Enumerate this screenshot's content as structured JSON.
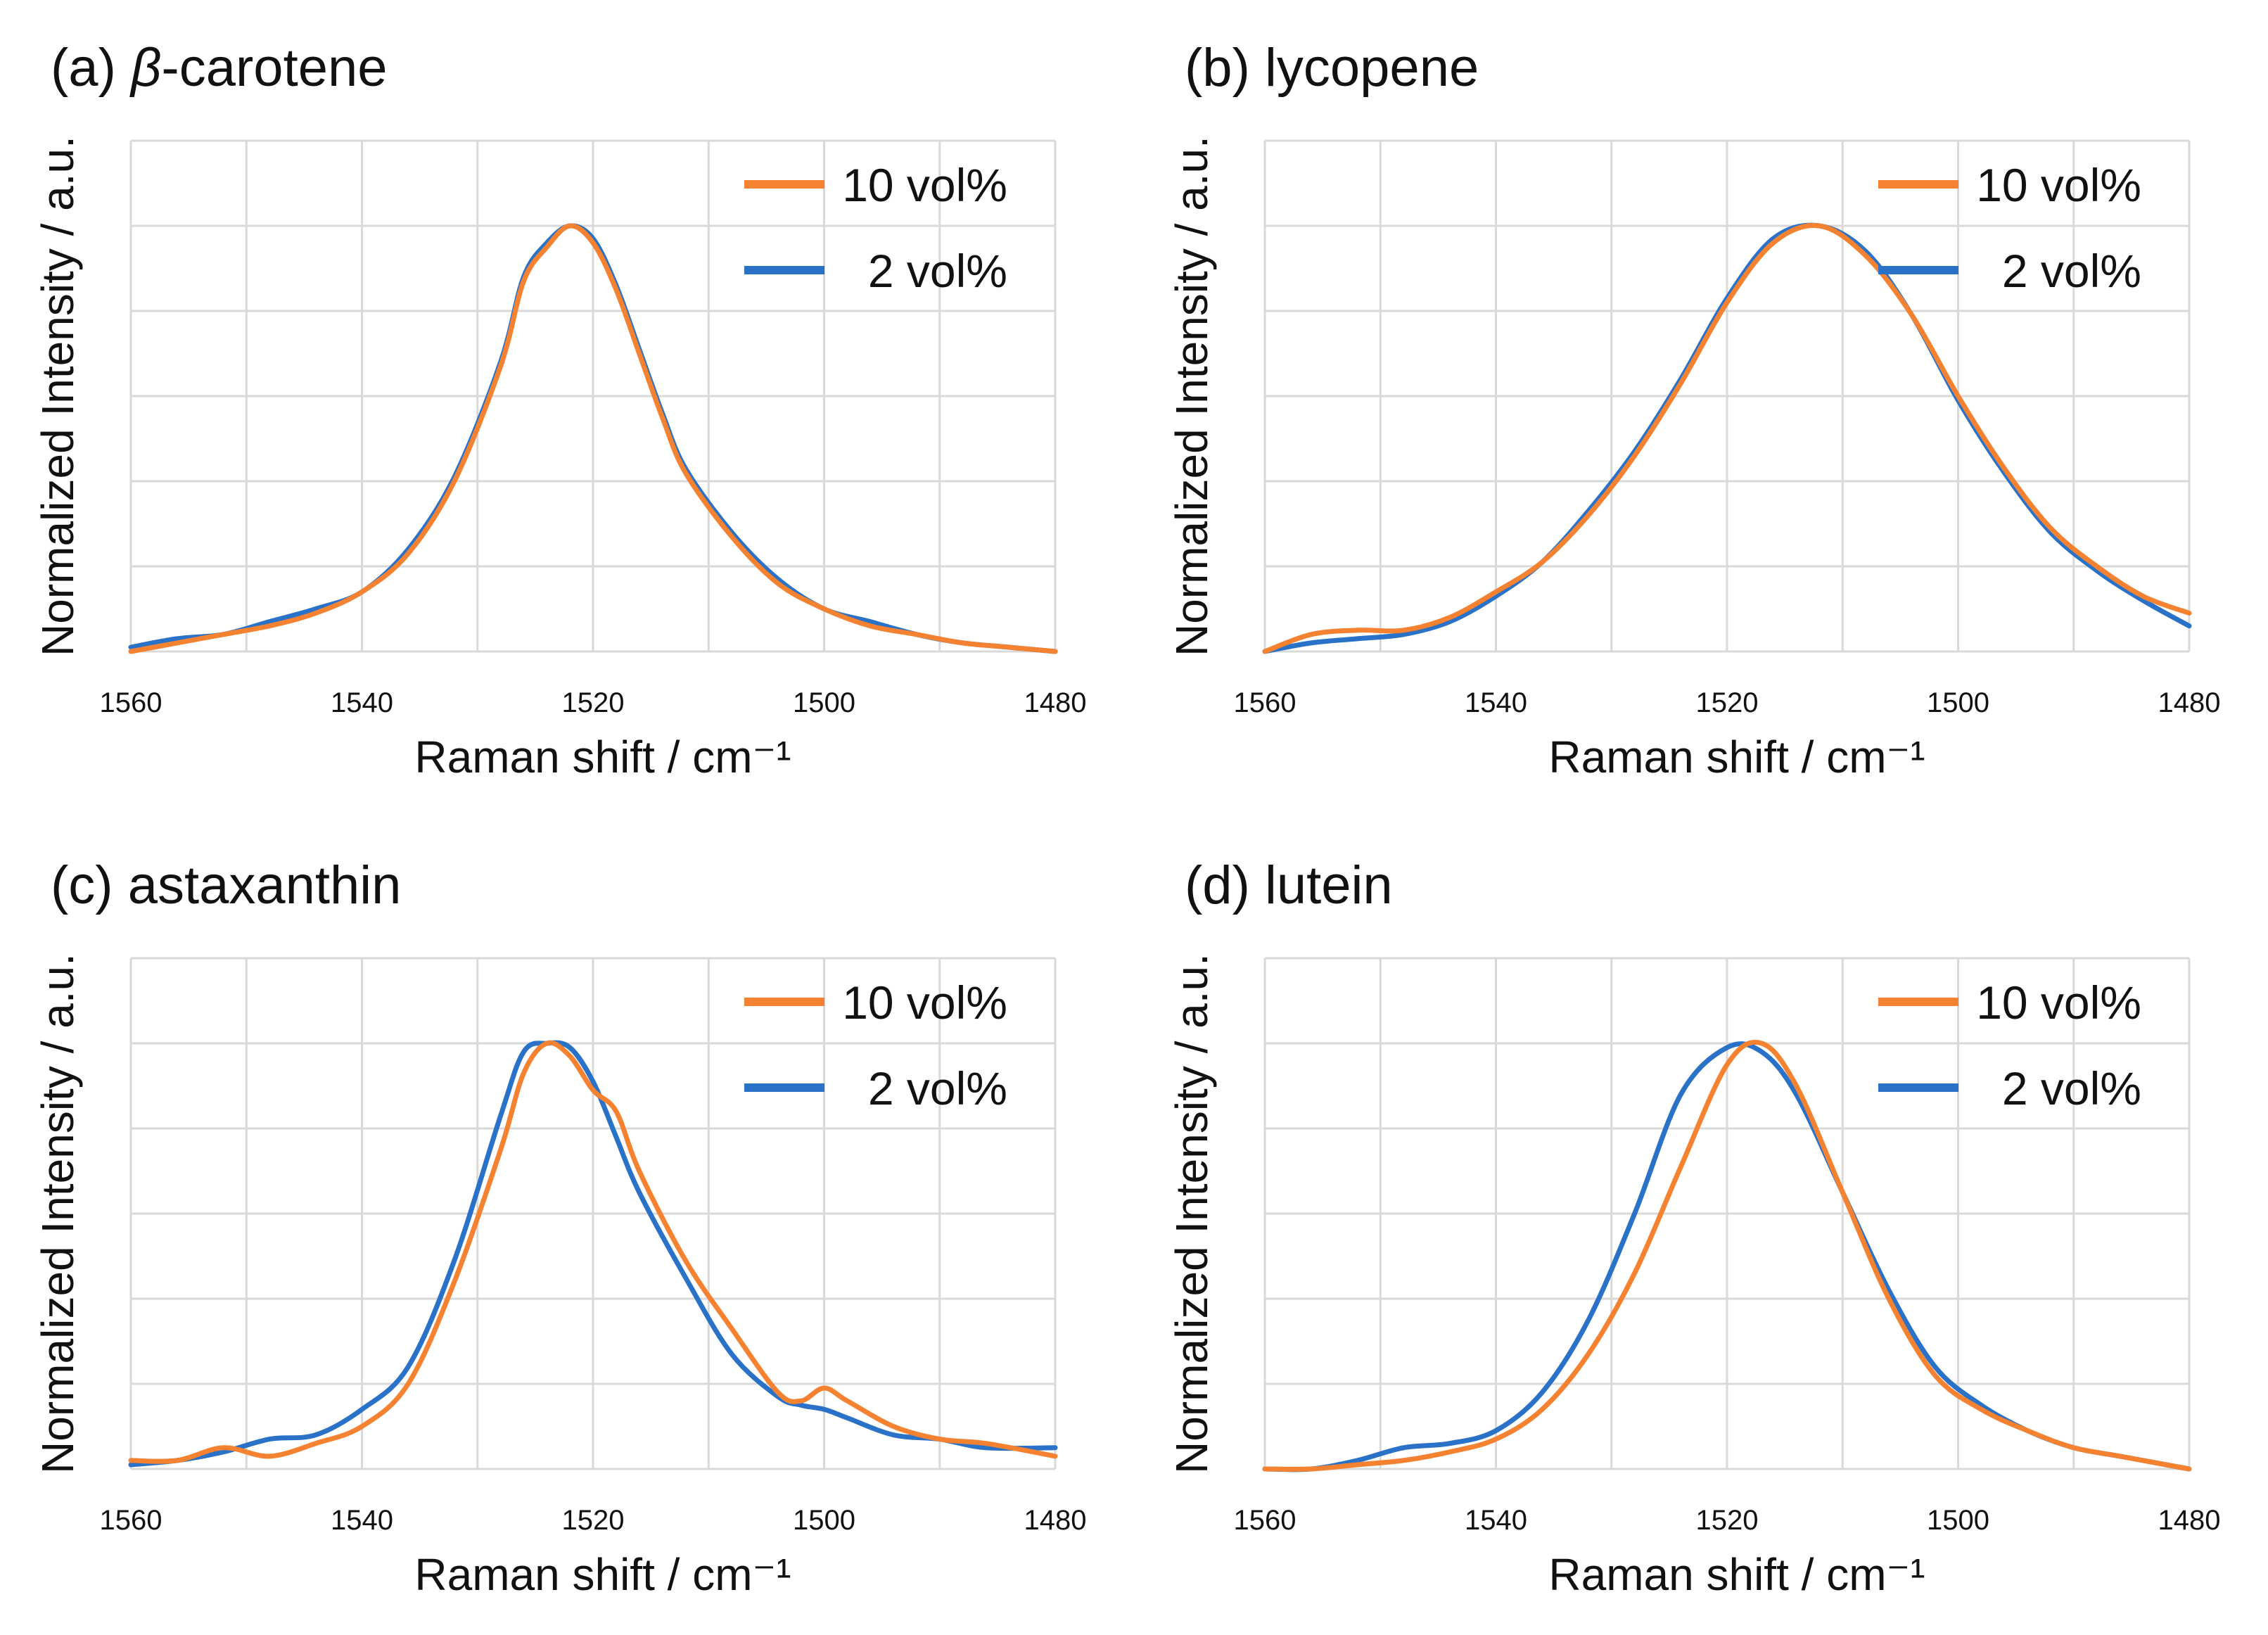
{
  "colors": {
    "series_10": "#F58231",
    "series_2": "#2A72C8",
    "grid": "#D9D9D9",
    "text": "#111111"
  },
  "chart_data": [
    {
      "type": "line",
      "title_prefix": "(a) ",
      "title_italic": "β",
      "title": "-carotene",
      "xlabel": "Raman shift / cm⁻¹",
      "ylabel": "Normalized Intensity / a.u.",
      "xlim": [
        1560,
        1480
      ],
      "ylim": [
        0,
        1.2
      ],
      "x_ticks": [
        "1560",
        "1540",
        "1520",
        "1500",
        "1480"
      ],
      "grid": true,
      "legend": "top-right",
      "series": [
        {
          "name": "10 vol%",
          "x": [
            1560,
            1556,
            1552,
            1548,
            1544,
            1540,
            1536,
            1532,
            1528,
            1526,
            1524,
            1522,
            1520,
            1518,
            1516,
            1514,
            1512,
            1508,
            1504,
            1500,
            1496,
            1492,
            1488,
            1484,
            1480
          ],
          "y": [
            0.0,
            0.02,
            0.04,
            0.06,
            0.09,
            0.14,
            0.23,
            0.4,
            0.67,
            0.87,
            0.95,
            1.0,
            0.96,
            0.85,
            0.7,
            0.55,
            0.42,
            0.27,
            0.16,
            0.1,
            0.06,
            0.04,
            0.02,
            0.01,
            0.0
          ]
        },
        {
          "name": "2 vol%",
          "x": [
            1560,
            1556,
            1552,
            1548,
            1544,
            1540,
            1536,
            1532,
            1528,
            1526,
            1524,
            1522,
            1520,
            1518,
            1516,
            1514,
            1512,
            1508,
            1504,
            1500,
            1496,
            1492,
            1488,
            1484,
            1480
          ],
          "y": [
            0.01,
            0.03,
            0.04,
            0.07,
            0.1,
            0.14,
            0.24,
            0.41,
            0.68,
            0.88,
            0.96,
            1.0,
            0.97,
            0.86,
            0.71,
            0.56,
            0.43,
            0.28,
            0.17,
            0.1,
            0.07,
            0.04,
            0.02,
            0.01,
            0.0
          ]
        }
      ]
    },
    {
      "type": "line",
      "title_prefix": "",
      "title_italic": "",
      "title": "(b) lycopene",
      "xlabel": "Raman shift / cm⁻¹",
      "ylabel": "Normalized Intensity / a.u.",
      "xlim": [
        1560,
        1480
      ],
      "ylim": [
        0,
        1.2
      ],
      "x_ticks": [
        "1560",
        "1540",
        "1520",
        "1500",
        "1480"
      ],
      "grid": true,
      "legend": "top-right",
      "series": [
        {
          "name": "10 vol%",
          "x": [
            1560,
            1556,
            1552,
            1548,
            1544,
            1540,
            1536,
            1532,
            1528,
            1524,
            1520,
            1516,
            1512,
            1508,
            1504,
            1500,
            1496,
            1492,
            1488,
            1484,
            1480
          ],
          "y": [
            0.0,
            0.04,
            0.05,
            0.05,
            0.08,
            0.14,
            0.21,
            0.32,
            0.46,
            0.63,
            0.82,
            0.96,
            1.0,
            0.93,
            0.79,
            0.6,
            0.43,
            0.29,
            0.2,
            0.13,
            0.09
          ]
        },
        {
          "name": "2 vol%",
          "x": [
            1560,
            1556,
            1552,
            1548,
            1544,
            1540,
            1536,
            1532,
            1528,
            1524,
            1520,
            1516,
            1512,
            1508,
            1504,
            1500,
            1496,
            1492,
            1488,
            1484,
            1480
          ],
          "y": [
            0.0,
            0.02,
            0.03,
            0.04,
            0.07,
            0.13,
            0.21,
            0.33,
            0.47,
            0.64,
            0.83,
            0.97,
            1.0,
            0.94,
            0.79,
            0.59,
            0.42,
            0.28,
            0.19,
            0.12,
            0.06
          ]
        }
      ]
    },
    {
      "type": "line",
      "title_prefix": "",
      "title_italic": "",
      "title": "(c) astaxanthin",
      "xlabel": "Raman shift / cm⁻¹",
      "ylabel": "Normalized Intensity / a.u.",
      "xlim": [
        1560,
        1480
      ],
      "ylim": [
        0,
        1.2
      ],
      "x_ticks": [
        "1560",
        "1540",
        "1520",
        "1500",
        "1480"
      ],
      "grid": true,
      "legend": "top-right",
      "series": [
        {
          "name": "10 vol%",
          "x": [
            1560,
            1556,
            1552,
            1548,
            1544,
            1540,
            1536,
            1532,
            1528,
            1526,
            1524,
            1522,
            1520,
            1518,
            1516,
            1512,
            1508,
            1504,
            1502,
            1500,
            1498,
            1494,
            1490,
            1486,
            1480
          ],
          "y": [
            0.02,
            0.02,
            0.05,
            0.03,
            0.06,
            0.1,
            0.2,
            0.44,
            0.75,
            0.93,
            1.0,
            0.97,
            0.89,
            0.84,
            0.7,
            0.49,
            0.33,
            0.18,
            0.16,
            0.19,
            0.16,
            0.1,
            0.07,
            0.06,
            0.03
          ]
        },
        {
          "name": "2 vol%",
          "x": [
            1560,
            1556,
            1552,
            1548,
            1544,
            1540,
            1536,
            1532,
            1528,
            1526,
            1524,
            1522,
            1520,
            1518,
            1516,
            1512,
            1508,
            1504,
            1502,
            1500,
            1498,
            1494,
            1490,
            1486,
            1480
          ],
          "y": [
            0.01,
            0.02,
            0.04,
            0.07,
            0.08,
            0.14,
            0.24,
            0.49,
            0.83,
            0.98,
            1.0,
            0.99,
            0.91,
            0.78,
            0.65,
            0.45,
            0.27,
            0.17,
            0.15,
            0.14,
            0.12,
            0.08,
            0.07,
            0.05,
            0.05
          ]
        }
      ]
    },
    {
      "type": "line",
      "title_prefix": "",
      "title_italic": "",
      "title": "(d) lutein",
      "xlabel": "Raman shift / cm⁻¹",
      "ylabel": "Normalized Intensity / a.u.",
      "xlim": [
        1560,
        1480
      ],
      "ylim": [
        0,
        1.2
      ],
      "x_ticks": [
        "1560",
        "1540",
        "1520",
        "1500",
        "1480"
      ],
      "grid": true,
      "legend": "top-right",
      "series": [
        {
          "name": "10 vol%",
          "x": [
            1560,
            1556,
            1552,
            1548,
            1544,
            1540,
            1536,
            1532,
            1528,
            1524,
            1520,
            1517,
            1514,
            1510,
            1506,
            1502,
            1498,
            1494,
            1490,
            1486,
            1482,
            1480
          ],
          "y": [
            0.0,
            0.0,
            0.01,
            0.02,
            0.04,
            0.07,
            0.14,
            0.27,
            0.46,
            0.71,
            0.95,
            1.0,
            0.9,
            0.65,
            0.4,
            0.22,
            0.14,
            0.09,
            0.05,
            0.03,
            0.01,
            0.0
          ]
        },
        {
          "name": "2 vol%",
          "x": [
            1560,
            1556,
            1552,
            1548,
            1544,
            1540,
            1536,
            1532,
            1528,
            1524,
            1520,
            1517,
            1514,
            1510,
            1506,
            1502,
            1498,
            1494,
            1490,
            1486,
            1482,
            1480
          ],
          "y": [
            0.0,
            0.0,
            0.02,
            0.05,
            0.06,
            0.09,
            0.18,
            0.35,
            0.6,
            0.88,
            0.99,
            0.98,
            0.88,
            0.65,
            0.42,
            0.24,
            0.15,
            0.09,
            0.05,
            0.03,
            0.01,
            0.0
          ]
        }
      ]
    }
  ]
}
